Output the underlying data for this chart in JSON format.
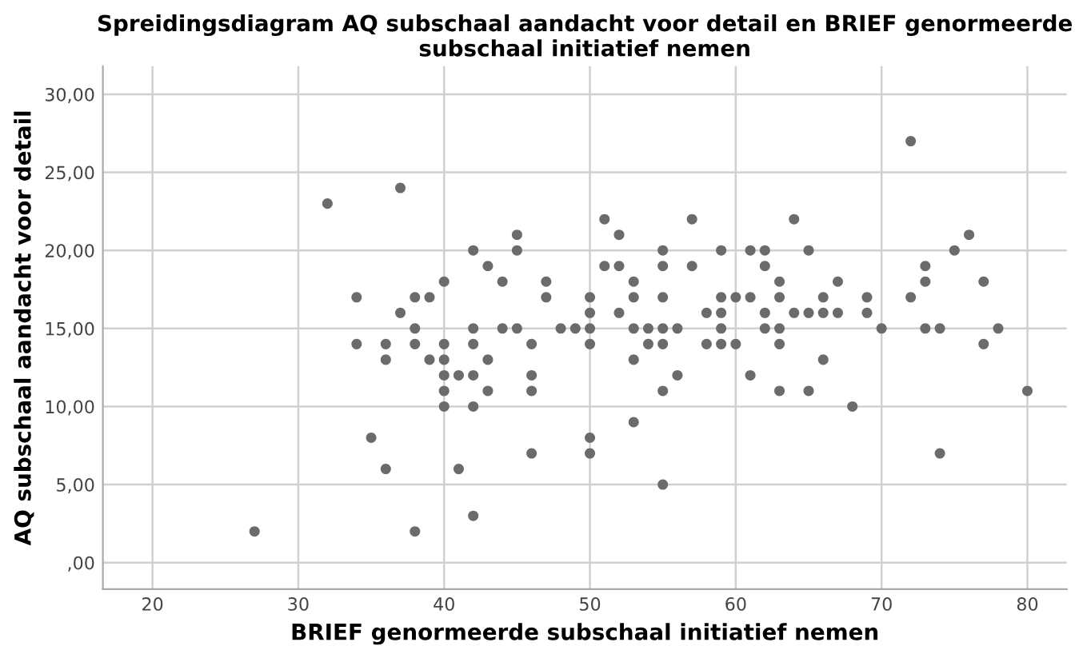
{
  "chart_data": {
    "type": "scatter",
    "title": "Spreidingsdiagram AQ subschaal aandacht voor detail en BRIEF genormeerde subschaal initiatief nemen",
    "xlabel": "BRIEF genormeerde subschaal initiatief nemen",
    "ylabel": "AQ subschaal aandacht voor detail",
    "xlim": [
      16.6,
      82.7
    ],
    "ylim": [
      -1.7,
      31.8
    ],
    "xticks": [
      20,
      30,
      40,
      50,
      60,
      70,
      80
    ],
    "yticks": [
      {
        "value": 0,
        "label": ",00"
      },
      {
        "value": 5,
        "label": "5,00"
      },
      {
        "value": 10,
        "label": "10,00"
      },
      {
        "value": 15,
        "label": "15,00"
      },
      {
        "value": 20,
        "label": "20,00"
      },
      {
        "value": 25,
        "label": "25,00"
      },
      {
        "value": 30,
        "label": "30,00"
      }
    ],
    "grid": true,
    "marker": "circle",
    "series": [
      {
        "color": "#6b6b6b",
        "x": [
          27,
          32,
          34,
          34,
          35,
          36,
          36,
          36,
          37,
          37,
          38,
          38,
          38,
          38,
          39,
          39,
          40,
          40,
          40,
          40,
          40,
          40,
          41,
          41,
          42,
          42,
          42,
          42,
          42,
          42,
          43,
          43,
          43,
          44,
          44,
          45,
          45,
          45,
          46,
          46,
          46,
          46,
          47,
          47,
          48,
          49,
          50,
          50,
          50,
          50,
          50,
          50,
          51,
          51,
          52,
          52,
          52,
          53,
          53,
          53,
          53,
          53,
          54,
          54,
          55,
          55,
          55,
          55,
          55,
          55,
          55,
          56,
          56,
          57,
          57,
          58,
          58,
          59,
          59,
          59,
          59,
          59,
          60,
          60,
          61,
          61,
          61,
          62,
          62,
          62,
          62,
          63,
          63,
          63,
          63,
          63,
          64,
          64,
          65,
          65,
          65,
          66,
          66,
          66,
          67,
          67,
          68,
          69,
          69,
          70,
          72,
          72,
          73,
          73,
          73,
          74,
          74,
          75,
          76,
          77,
          77,
          78,
          80
        ],
        "values": [
          2,
          23,
          17,
          14,
          8,
          14,
          13,
          6,
          24,
          16,
          17,
          15,
          14,
          2,
          17,
          13,
          18,
          14,
          13,
          12,
          11,
          10,
          12,
          6,
          20,
          15,
          14,
          12,
          10,
          3,
          19,
          13,
          11,
          18,
          15,
          21,
          20,
          15,
          14,
          12,
          11,
          7,
          18,
          17,
          15,
          15,
          17,
          16,
          15,
          14,
          8,
          7,
          22,
          19,
          21,
          19,
          16,
          18,
          17,
          15,
          13,
          9,
          15,
          14,
          20,
          19,
          17,
          15,
          14,
          11,
          5,
          15,
          12,
          22,
          19,
          16,
          14,
          20,
          17,
          16,
          15,
          14,
          17,
          14,
          20,
          17,
          12,
          20,
          19,
          16,
          15,
          18,
          17,
          15,
          14,
          11,
          22,
          16,
          20,
          16,
          11,
          17,
          16,
          13,
          18,
          16,
          10,
          17,
          16,
          15,
          27,
          17,
          19,
          18,
          15,
          15,
          7,
          20,
          21,
          18,
          14,
          15,
          11
        ]
      }
    ]
  }
}
